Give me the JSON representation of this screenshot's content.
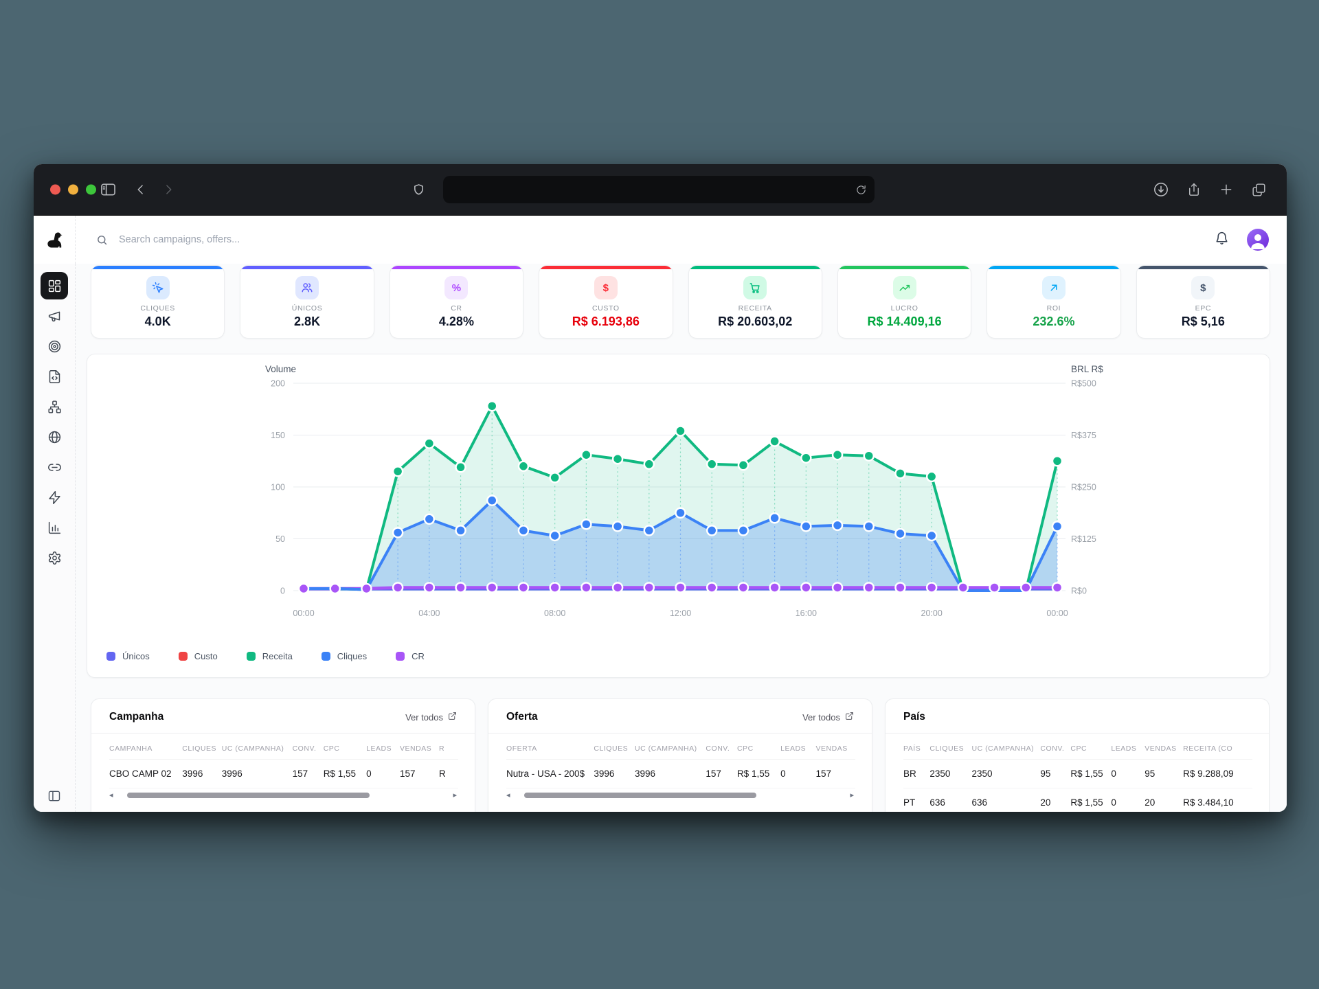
{
  "browser": {
    "traffic_lights": {
      "close_color": "#ee5a52",
      "minimize_color": "#f0b03f",
      "zoom_color": "#3dc63b"
    },
    "address_value": "",
    "icons": [
      "sidebar-toggle",
      "back",
      "forward",
      "shield",
      "reload",
      "download",
      "share",
      "new-tab",
      "tab-overview"
    ]
  },
  "topbar": {
    "search_placeholder": "Search campaigns, offers...",
    "icons": [
      "search",
      "bell",
      "avatar"
    ]
  },
  "sidebar": {
    "items": [
      {
        "id": "dashboard",
        "active": true
      },
      {
        "id": "campaigns",
        "active": false
      },
      {
        "id": "offers",
        "active": false
      },
      {
        "id": "landings",
        "active": false
      },
      {
        "id": "funnels",
        "active": false
      },
      {
        "id": "domains",
        "active": false
      },
      {
        "id": "links",
        "active": false
      },
      {
        "id": "integrations",
        "active": false
      },
      {
        "id": "reports",
        "active": false
      },
      {
        "id": "settings",
        "active": false
      }
    ],
    "bottom_icon": "collapse-sidebar"
  },
  "kpis": [
    {
      "id": "cliques",
      "label": "CLIQUES",
      "value": "4.0K",
      "accent": "#2b7fff",
      "chip_bg": "#dbeafe",
      "value_color": "#0f172a"
    },
    {
      "id": "unicos",
      "label": "ÚNICOS",
      "value": "2.8K",
      "accent": "#615fff",
      "chip_bg": "#e0e7ff",
      "value_color": "#0f172a"
    },
    {
      "id": "cr",
      "label": "CR",
      "value": "4.28%",
      "accent": "#ad46ff",
      "chip_bg": "#f3e8ff",
      "value_color": "#0f172a"
    },
    {
      "id": "custo",
      "label": "CUSTO",
      "value": "R$ 6.193,86",
      "accent": "#fb2c36",
      "chip_bg": "#fee2e2",
      "value_color": "#e7000b"
    },
    {
      "id": "receita",
      "label": "RECEITA",
      "value": "R$ 20.603,02",
      "accent": "#00bc7d",
      "chip_bg": "#d0fae5",
      "value_color": "#0f172a"
    },
    {
      "id": "lucro",
      "label": "LUCRO",
      "value": "R$ 14.409,16",
      "accent": "#22c55e",
      "chip_bg": "#dcfce7",
      "value_color": "#00a63e"
    },
    {
      "id": "roi",
      "label": "ROI",
      "value": "232.6%",
      "accent": "#00a6f4",
      "chip_bg": "#dff2fe",
      "value_color": "#16a34a"
    },
    {
      "id": "epc",
      "label": "EPC",
      "value": "R$ 5,16",
      "accent": "#45556c",
      "chip_bg": "#f1f5f9",
      "value_color": "#0f172a"
    }
  ],
  "chart_data": {
    "type": "area",
    "x": [
      "00:00",
      "01:00",
      "02:00",
      "03:00",
      "04:00",
      "05:00",
      "06:00",
      "07:00",
      "08:00",
      "09:00",
      "10:00",
      "11:00",
      "12:00",
      "13:00",
      "14:00",
      "15:00",
      "16:00",
      "17:00",
      "18:00",
      "19:00",
      "20:00",
      "21:00",
      "22:00",
      "23:00",
      "00:00"
    ],
    "x_tick_hours": [
      0,
      4,
      8,
      12,
      16,
      20,
      24
    ],
    "x_tick_labels": [
      "00:00",
      "04:00",
      "08:00",
      "12:00",
      "16:00",
      "20:00",
      "00:00"
    ],
    "left_axis": {
      "title": "Volume",
      "ticks": [
        0,
        50,
        100,
        150,
        200
      ],
      "max": 200
    },
    "right_axis": {
      "title": "BRL R$",
      "tick_labels": [
        "R$0",
        "R$125",
        "R$250",
        "R$375",
        "R$500"
      ]
    },
    "grid": true,
    "legend_position": "bottom-left",
    "series": [
      {
        "key": "unicos",
        "name": "Únicos",
        "color": "#6366f1",
        "values": [
          1,
          1,
          1,
          1,
          1,
          1,
          1,
          1,
          1,
          1,
          1,
          1,
          1,
          1,
          1,
          1,
          1,
          1,
          1,
          1,
          1,
          1,
          1,
          1,
          1
        ]
      },
      {
        "key": "custo",
        "name": "Custo",
        "color": "#ef4444",
        "values": [
          1.5,
          1.5,
          1.5,
          1.5,
          1.5,
          1.5,
          1.5,
          1.5,
          1.5,
          1.5,
          1.5,
          1.5,
          1.5,
          1.5,
          1.5,
          1.5,
          1.5,
          1.5,
          1.5,
          1.5,
          1.5,
          1.5,
          1.5,
          1.5,
          1.5
        ]
      },
      {
        "key": "receita",
        "name": "Receita",
        "color": "#10b981",
        "values": [
          2,
          2,
          1,
          115,
          142,
          119,
          178,
          120,
          109,
          131,
          127,
          122,
          154,
          122,
          121,
          144,
          128,
          131,
          130,
          113,
          110,
          0,
          0,
          0,
          125
        ]
      },
      {
        "key": "cliques",
        "name": "Cliques",
        "color": "#3b82f6",
        "values": [
          2,
          2,
          1,
          56,
          69,
          58,
          87,
          58,
          53,
          64,
          62,
          58,
          75,
          58,
          58,
          70,
          62,
          63,
          62,
          55,
          53,
          0,
          0,
          0,
          62
        ]
      },
      {
        "key": "cr",
        "name": "CR",
        "color": "#a855f7",
        "values": [
          2,
          2,
          2,
          3,
          3,
          3,
          3,
          3,
          3,
          3,
          3,
          3,
          3,
          3,
          3,
          3,
          3,
          3,
          3,
          3,
          3,
          3,
          3,
          3,
          3
        ]
      }
    ]
  },
  "tables": [
    {
      "id": "campanha",
      "title": "Campanha",
      "link_label": "Ver todos",
      "columns": [
        "CAMPANHA",
        "CLIQUES",
        "UC (CAMPANHA)",
        "CONV.",
        "CPC",
        "LEADS",
        "VENDAS",
        "R"
      ],
      "rows": [
        [
          "CBO CAMP 02",
          "3996",
          "3996",
          "157",
          "R$ 1,55",
          "0",
          "157",
          "R"
        ]
      ],
      "h_scrollbar": true
    },
    {
      "id": "oferta",
      "title": "Oferta",
      "link_label": "Ver todos",
      "columns": [
        "OFERTA",
        "CLIQUES",
        "UC (CAMPANHA)",
        "CONV.",
        "CPC",
        "LEADS",
        "VENDAS"
      ],
      "rows": [
        [
          "Nutra - USA - 200$",
          "3996",
          "3996",
          "157",
          "R$ 1,55",
          "0",
          "157"
        ]
      ],
      "h_scrollbar": true
    },
    {
      "id": "pais",
      "title": "País",
      "link_label": null,
      "columns": [
        "PAÍS",
        "CLIQUES",
        "UC (CAMPANHA)",
        "CONV.",
        "CPC",
        "LEADS",
        "VENDAS",
        "RECEITA (CO"
      ],
      "rows": [
        [
          "BR",
          "2350",
          "2350",
          "95",
          "R$ 1,55",
          "0",
          "95",
          "R$ 9.288,09"
        ],
        [
          "PT",
          "636",
          "636",
          "20",
          "R$ 1,55",
          "0",
          "20",
          "R$ 3.484,10"
        ]
      ],
      "h_scrollbar": false
    }
  ]
}
